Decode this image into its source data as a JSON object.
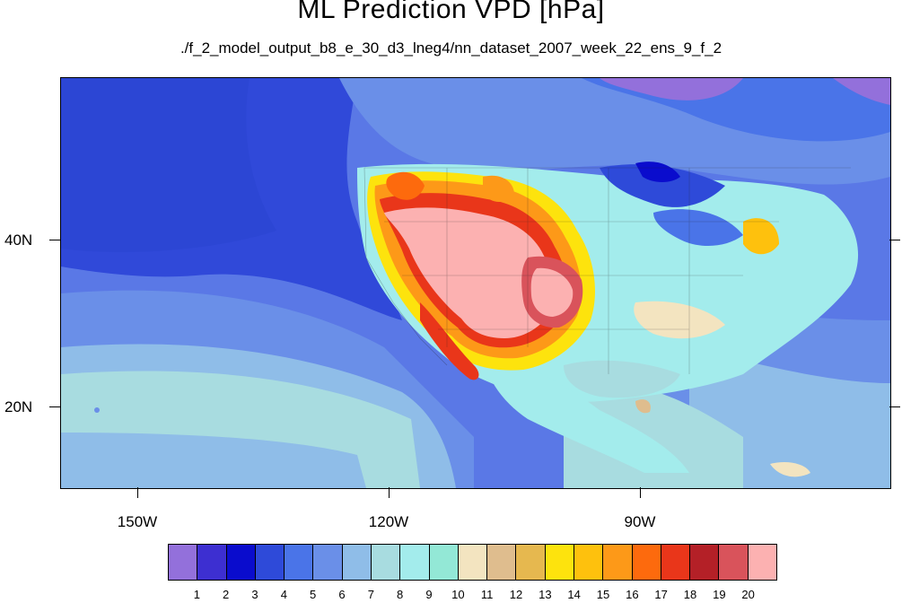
{
  "title": "ML Prediction VPD [hPa]",
  "subtitle": "./f_2_model_output_b8_e_30_d3_lneg4/nn_dataset_2007_week_22_ens_9_f_2",
  "lat_labels": [
    "40N",
    "20N"
  ],
  "lon_labels": [
    "150W",
    "120W",
    "90W"
  ],
  "colorbar": {
    "levels": [
      "1",
      "2",
      "3",
      "4",
      "5",
      "6",
      "7",
      "8",
      "9",
      "10",
      "11",
      "12",
      "13",
      "14",
      "15",
      "16",
      "17",
      "18",
      "19",
      "20"
    ],
    "colors": [
      "#9370db",
      "#3d2fd1",
      "#0a0ccd",
      "#2e4ad9",
      "#4a74e8",
      "#6a8fe8",
      "#8fbde8",
      "#a8dce0",
      "#a3ecec",
      "#93e8d6",
      "#f3e4c0",
      "#dfbd8e",
      "#e6b84f",
      "#fde30d",
      "#fec10d",
      "#fd9918",
      "#fd6a0d",
      "#e9361a",
      "#b42027",
      "#d9535b",
      "#fcb1b1"
    ]
  }
}
